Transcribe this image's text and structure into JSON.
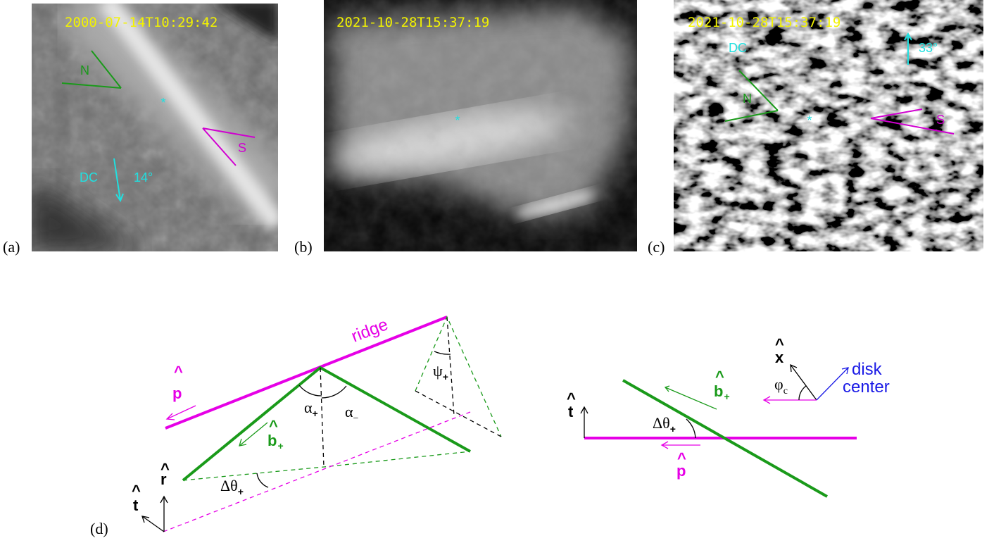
{
  "panels": [
    {
      "label": "(a)",
      "timestamp": "2000-07-14T10:29:42",
      "north": "N",
      "south": "S",
      "disk_center": "DC",
      "angle": "14°"
    },
    {
      "label": "(b)",
      "timestamp": "2021-10-28T15:37:19"
    },
    {
      "label": "(c)",
      "timestamp": "2021-10-28T15:37:19",
      "north": "N",
      "south": "S",
      "disk_center": "DC",
      "angle": "33°"
    }
  ],
  "diagram": {
    "label": "(d)",
    "ridge": "ridge",
    "p": {
      "accent": "^",
      "symbol": "p"
    },
    "b_plus": {
      "accent": "^",
      "symbol": "b",
      "subscript": "+"
    },
    "alpha_plus": {
      "symbol": "α",
      "subscript": "+"
    },
    "alpha_minus": {
      "symbol": "α",
      "subscript": "−"
    },
    "psi_plus": {
      "symbol": "ψ",
      "subscript": "+"
    },
    "delta_theta_plus": {
      "symbol": "Δθ",
      "subscript": "+"
    },
    "r": {
      "accent": "^",
      "symbol": "r"
    },
    "t": {
      "accent": "^",
      "symbol": "t"
    }
  },
  "projection": {
    "t": {
      "accent": "^",
      "symbol": "t"
    },
    "delta_theta_plus": {
      "symbol": "Δθ",
      "subscript": "+"
    },
    "b_plus": {
      "accent": "^",
      "symbol": "b",
      "subscript": "+"
    },
    "p": {
      "accent": "^",
      "symbol": "p"
    },
    "x": {
      "accent": "^",
      "symbol": "x"
    },
    "phi_c": {
      "symbol": "φ",
      "subscript": "c"
    },
    "disk_center": [
      "disk",
      "center"
    ]
  }
}
